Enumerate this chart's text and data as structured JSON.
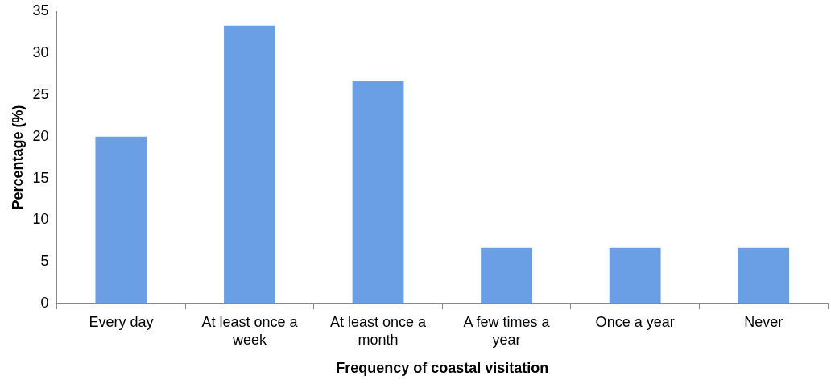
{
  "chart_data": {
    "type": "bar",
    "xlabel": "Frequency of coastal visitation",
    "ylabel": "Percentage (%)",
    "categories": [
      "Every day",
      "At least once a week",
      "At least once a month",
      "A few times a year",
      "Once a year",
      "Never"
    ],
    "values": [
      20,
      33.3,
      26.7,
      6.7,
      6.7,
      6.7
    ],
    "color": "#6a9fe6",
    "ylim": [
      0,
      35
    ],
    "yticks": [
      0,
      5,
      10,
      15,
      20,
      25,
      30,
      35
    ],
    "grid": false,
    "legend": false
  }
}
